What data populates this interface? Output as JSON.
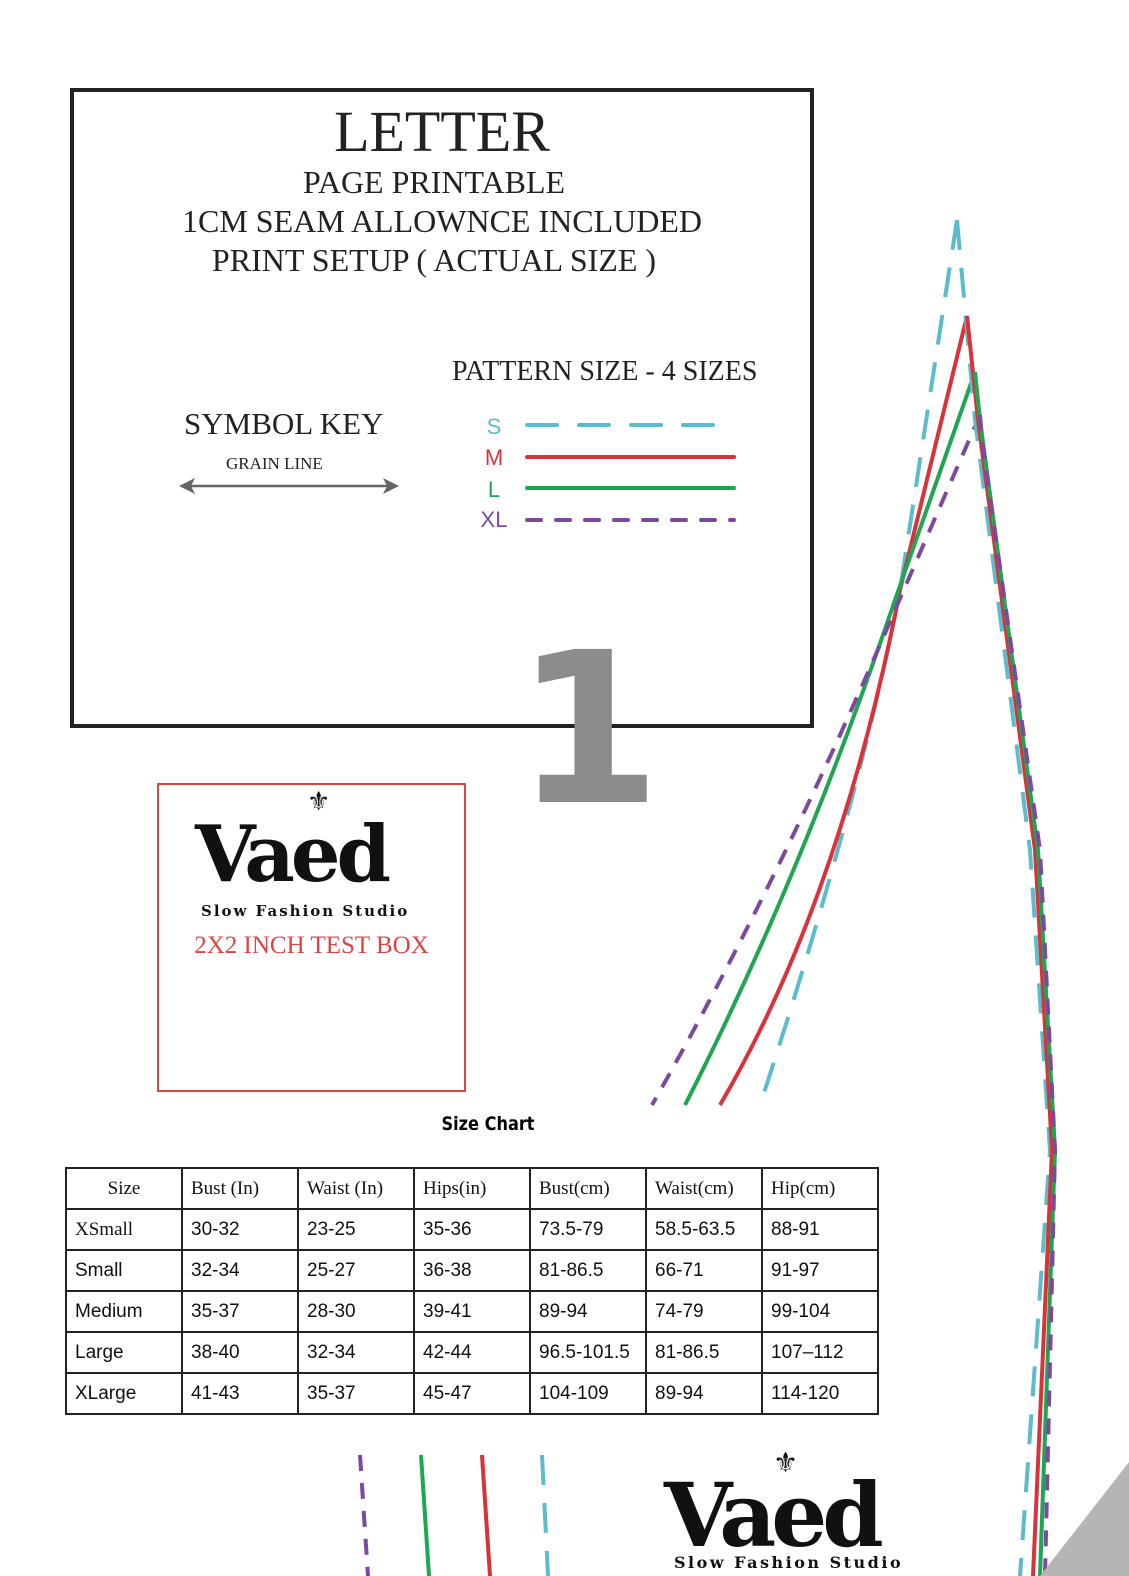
{
  "header": {
    "title": "LETTER",
    "lines": [
      "PAGE PRINTABLE",
      "1CM SEAM ALLOWNCE INCLUDED",
      "PRINT SETUP ( ACTUAL SIZE )"
    ]
  },
  "symbol_key": {
    "title": "SYMBOL KEY",
    "grain_line": "GRAIN LINE"
  },
  "pattern_size": {
    "title": "PATTERN SIZE - 4 SIZES",
    "sizes": [
      {
        "label": "S",
        "color": "#5bbccb",
        "style": "dashed"
      },
      {
        "label": "M",
        "color": "#d9323a",
        "style": "solid"
      },
      {
        "label": "L",
        "color": "#1fa653",
        "style": "solid"
      },
      {
        "label": "XL",
        "color": "#7b4a9e",
        "style": "dashed"
      }
    ]
  },
  "page_number": "1",
  "test_box": {
    "brand": "Vaed",
    "tagline": "Slow Fashion Studio",
    "label": "2X2 INCH TEST BOX",
    "color": "#d44444"
  },
  "size_chart": {
    "title": "Size Chart",
    "headers": [
      "Size",
      "Bust (In)",
      "Waist (In)",
      "Hips(in)",
      "Bust(cm)",
      "Waist(cm)",
      "Hip(cm)"
    ],
    "rows": [
      [
        "XSmall",
        "30-32",
        "23-25",
        "35-36",
        "73.5-79",
        "58.5-63.5",
        "88-91"
      ],
      [
        "Small",
        "32-34",
        "25-27",
        "36-38",
        "81-86.5",
        "66-71",
        "91-97"
      ],
      [
        "Medium",
        "35-37",
        "28-30",
        "39-41",
        "89-94",
        "74-79",
        "99-104"
      ],
      [
        "Large",
        "38-40",
        "32-34",
        "42-44",
        "96.5-101.5",
        "81-86.5",
        "107–112"
      ],
      [
        "XLarge",
        "41-43",
        "35-37",
        "45-47",
        "104-109",
        "89-94",
        "114-120"
      ]
    ]
  },
  "footer_logo": {
    "brand": "Vaed",
    "tagline": "Slow Fashion Studio"
  }
}
